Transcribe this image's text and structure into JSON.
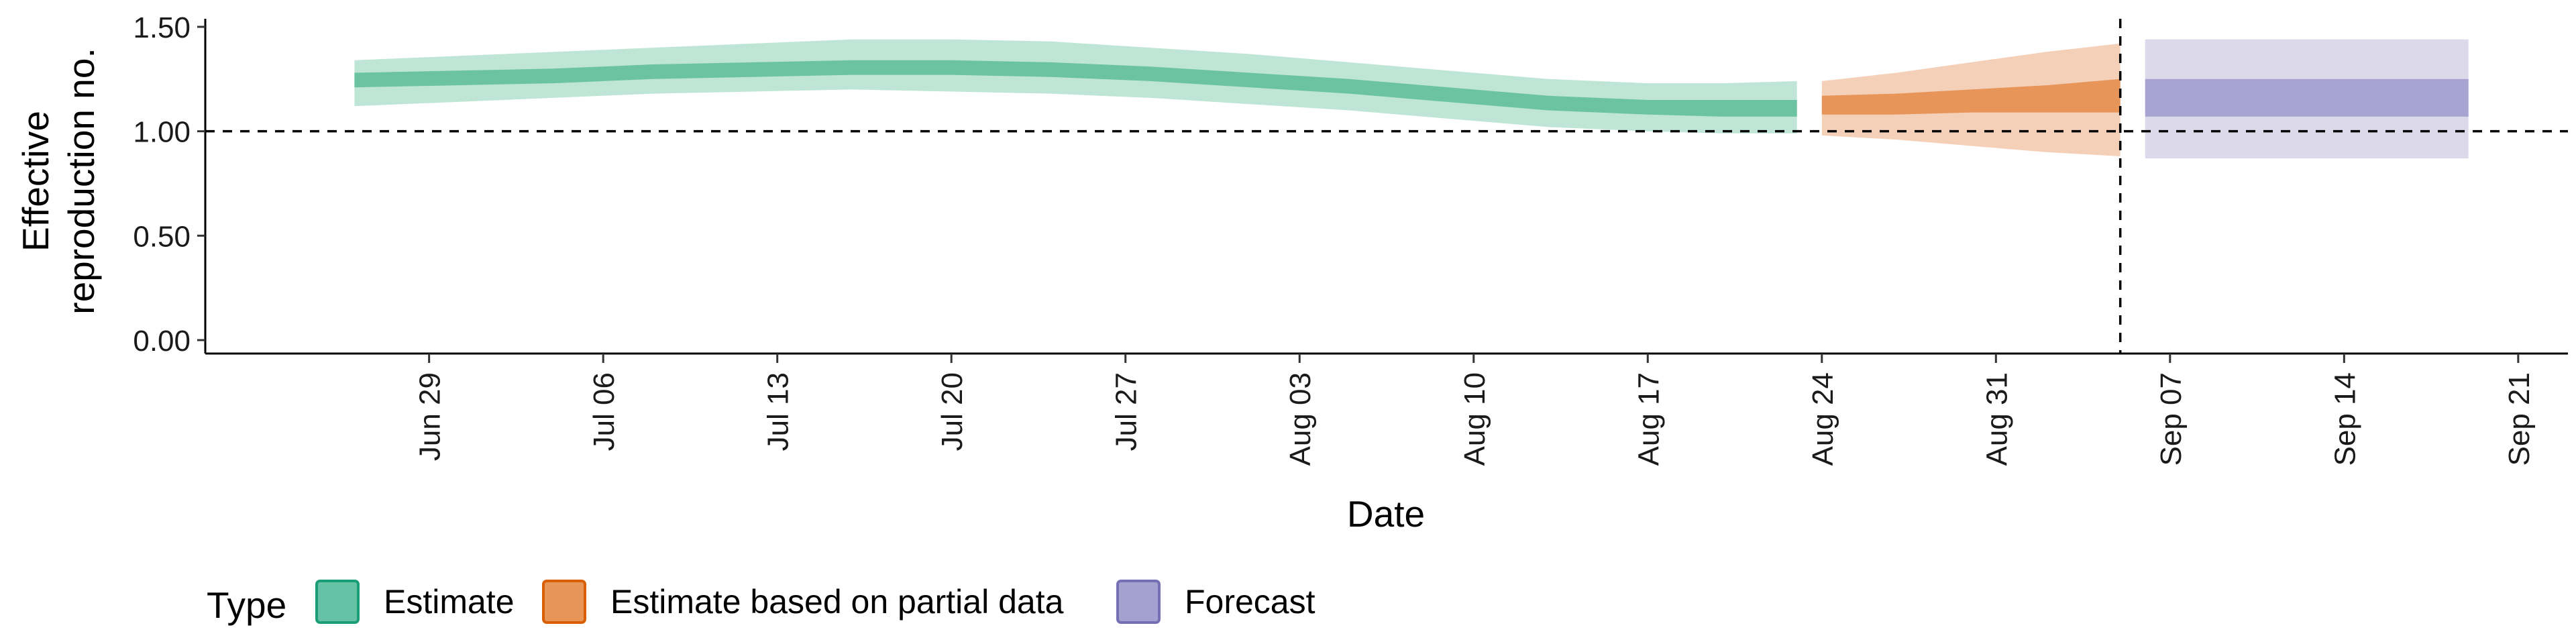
{
  "chart_data": {
    "type": "area",
    "xlabel": "Date",
    "ylabel_lines": [
      "Effective",
      "reproduction no."
    ],
    "ylim": [
      0,
      1.5
    ],
    "yticks": [
      {
        "value": 0.0,
        "label": "0.00"
      },
      {
        "value": 0.5,
        "label": "0.50"
      },
      {
        "value": 1.0,
        "label": "1.00"
      },
      {
        "value": 1.5,
        "label": "1.50"
      }
    ],
    "xlim": [
      "2020-06-20",
      "2020-09-23"
    ],
    "xticks": [
      {
        "date": "2020-06-29",
        "label": "Jun 29"
      },
      {
        "date": "2020-07-06",
        "label": "Jul 06"
      },
      {
        "date": "2020-07-13",
        "label": "Jul 13"
      },
      {
        "date": "2020-07-20",
        "label": "Jul 20"
      },
      {
        "date": "2020-07-27",
        "label": "Jul 27"
      },
      {
        "date": "2020-08-03",
        "label": "Aug 03"
      },
      {
        "date": "2020-08-10",
        "label": "Aug 10"
      },
      {
        "date": "2020-08-17",
        "label": "Aug 17"
      },
      {
        "date": "2020-08-24",
        "label": "Aug 24"
      },
      {
        "date": "2020-08-31",
        "label": "Aug 31"
      },
      {
        "date": "2020-09-07",
        "label": "Sep 07"
      },
      {
        "date": "2020-09-14",
        "label": "Sep 14"
      },
      {
        "date": "2020-09-21",
        "label": "Sep 21"
      }
    ],
    "reference_lines": [
      {
        "orientation": "horizontal",
        "value": 1.0,
        "style": "dashed"
      },
      {
        "orientation": "vertical",
        "value": "2020-09-05",
        "style": "dashed"
      }
    ],
    "grid": false,
    "legend": {
      "position": "bottom-left",
      "title": "Type",
      "items": [
        {
          "label": "Estimate",
          "fill": "#66c2a5",
          "stroke": "#1b9e77"
        },
        {
          "label": "Estimate based on partial data",
          "fill": "#e8955a",
          "stroke": "#d95f02"
        },
        {
          "label": "Forecast",
          "fill": "#a4a0cf",
          "stroke": "#7570b3"
        }
      ]
    },
    "series": [
      {
        "name": "Estimate",
        "color_outer": "#bfe5d7",
        "color_inner": "#6cc3a3",
        "points": [
          {
            "x": "2020-06-26",
            "lo90": 1.12,
            "lo50": 1.21,
            "hi50": 1.28,
            "hi90": 1.34
          },
          {
            "x": "2020-06-30",
            "lo90": 1.14,
            "lo50": 1.22,
            "hi50": 1.29,
            "hi90": 1.36
          },
          {
            "x": "2020-07-04",
            "lo90": 1.16,
            "lo50": 1.23,
            "hi50": 1.3,
            "hi90": 1.38
          },
          {
            "x": "2020-07-08",
            "lo90": 1.18,
            "lo50": 1.25,
            "hi50": 1.32,
            "hi90": 1.4
          },
          {
            "x": "2020-07-12",
            "lo90": 1.19,
            "lo50": 1.26,
            "hi50": 1.33,
            "hi90": 1.42
          },
          {
            "x": "2020-07-16",
            "lo90": 1.2,
            "lo50": 1.27,
            "hi50": 1.34,
            "hi90": 1.44
          },
          {
            "x": "2020-07-20",
            "lo90": 1.19,
            "lo50": 1.27,
            "hi50": 1.34,
            "hi90": 1.44
          },
          {
            "x": "2020-07-24",
            "lo90": 1.18,
            "lo50": 1.26,
            "hi50": 1.33,
            "hi90": 1.43
          },
          {
            "x": "2020-07-28",
            "lo90": 1.16,
            "lo50": 1.24,
            "hi50": 1.31,
            "hi90": 1.4
          },
          {
            "x": "2020-08-01",
            "lo90": 1.13,
            "lo50": 1.21,
            "hi50": 1.28,
            "hi90": 1.37
          },
          {
            "x": "2020-08-05",
            "lo90": 1.1,
            "lo50": 1.18,
            "hi50": 1.25,
            "hi90": 1.33
          },
          {
            "x": "2020-08-09",
            "lo90": 1.06,
            "lo50": 1.14,
            "hi50": 1.21,
            "hi90": 1.29
          },
          {
            "x": "2020-08-13",
            "lo90": 1.02,
            "lo50": 1.1,
            "hi50": 1.17,
            "hi90": 1.25
          },
          {
            "x": "2020-08-17",
            "lo90": 1.0,
            "lo50": 1.08,
            "hi50": 1.15,
            "hi90": 1.23
          },
          {
            "x": "2020-08-20",
            "lo90": 0.99,
            "lo50": 1.07,
            "hi50": 1.15,
            "hi90": 1.23
          },
          {
            "x": "2020-08-23",
            "lo90": 0.99,
            "lo50": 1.07,
            "hi50": 1.15,
            "hi90": 1.24
          }
        ]
      },
      {
        "name": "Estimate based on partial data",
        "color_outer": "#f4d0b8",
        "color_inner": "#e8955a",
        "points": [
          {
            "x": "2020-08-24",
            "lo90": 0.98,
            "lo50": 1.08,
            "hi50": 1.17,
            "hi90": 1.24
          },
          {
            "x": "2020-08-27",
            "lo90": 0.96,
            "lo50": 1.08,
            "hi50": 1.18,
            "hi90": 1.28
          },
          {
            "x": "2020-08-30",
            "lo90": 0.93,
            "lo50": 1.09,
            "hi50": 1.2,
            "hi90": 1.33
          },
          {
            "x": "2020-09-02",
            "lo90": 0.9,
            "lo50": 1.09,
            "hi50": 1.22,
            "hi90": 1.38
          },
          {
            "x": "2020-09-05",
            "lo90": 0.88,
            "lo50": 1.09,
            "hi50": 1.25,
            "hi90": 1.42
          }
        ]
      },
      {
        "name": "Forecast",
        "color_outer": "#dcdaea",
        "color_inner": "#a8a4d2",
        "points": [
          {
            "x": "2020-09-06",
            "lo90": 0.87,
            "lo50": 1.07,
            "hi50": 1.25,
            "hi90": 1.44
          },
          {
            "x": "2020-09-19",
            "lo90": 0.87,
            "lo50": 1.07,
            "hi50": 1.25,
            "hi90": 1.44
          }
        ]
      }
    ]
  }
}
